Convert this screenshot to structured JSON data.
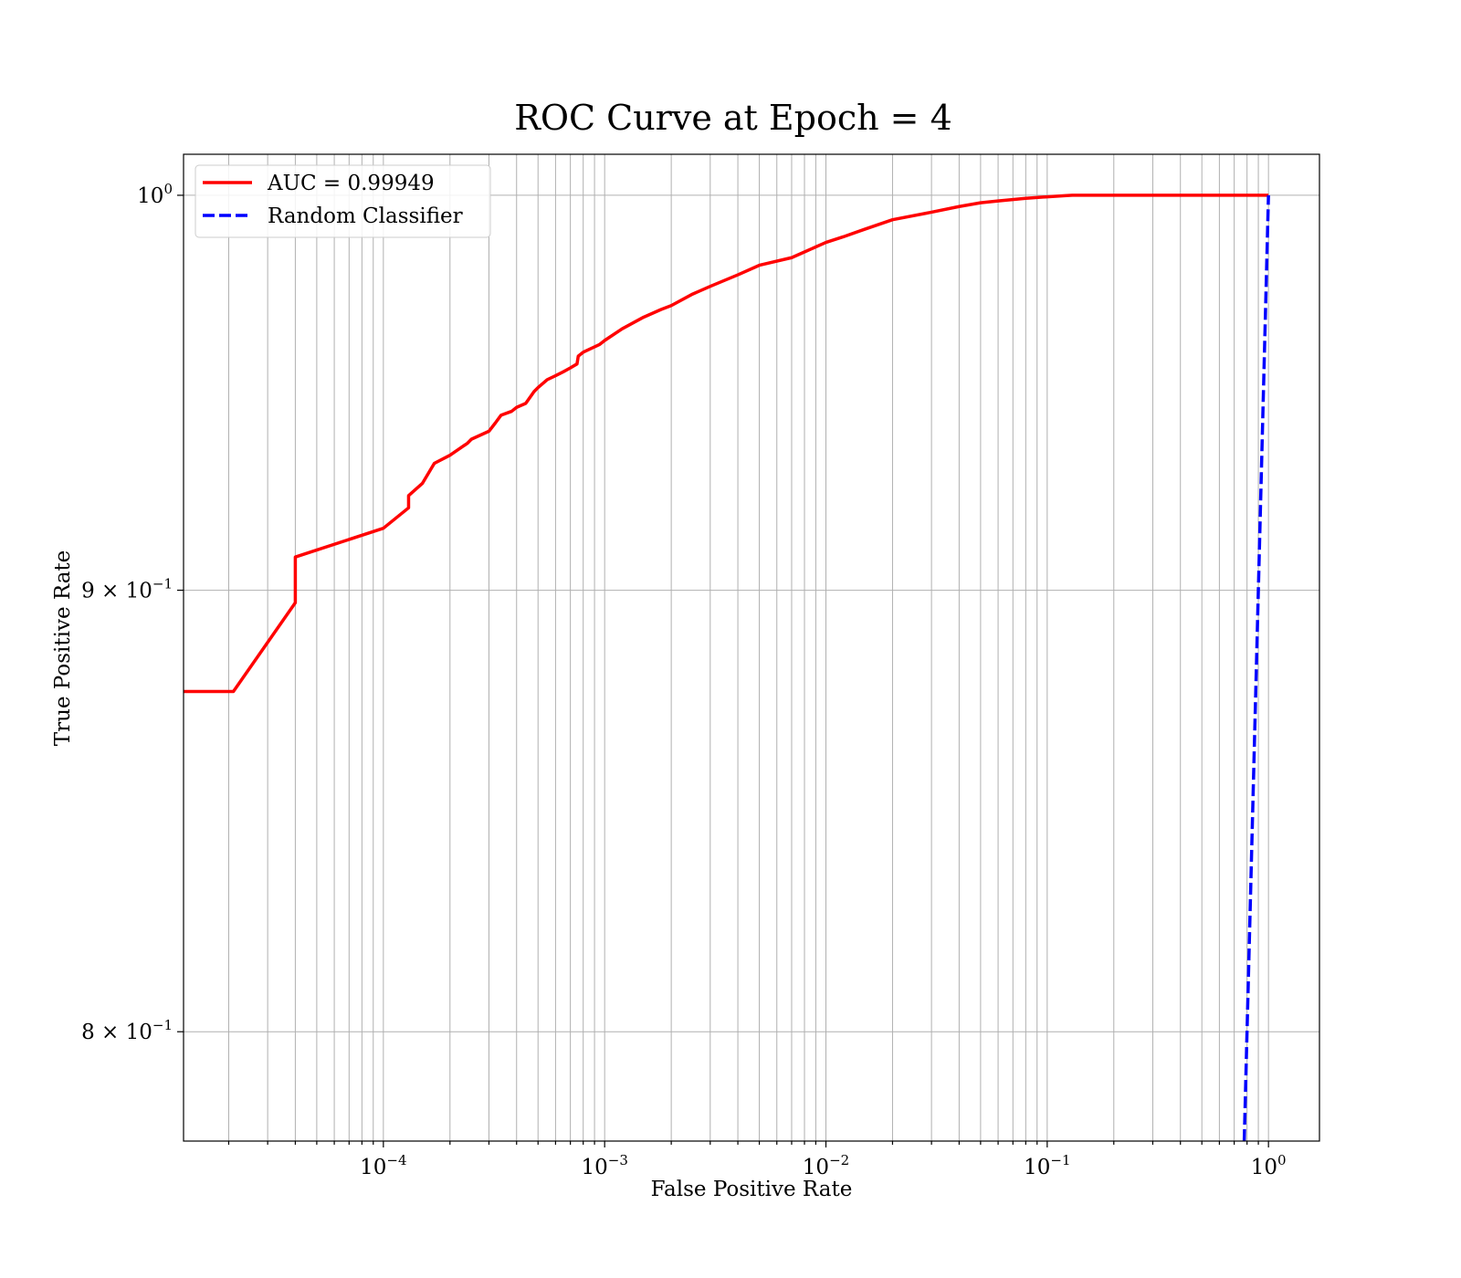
{
  "chart_data": {
    "type": "line",
    "title": "ROC Curve at Epoch = 4",
    "xlabel": "False Positive Rate",
    "ylabel": "True Positive Rate",
    "xscale": "log",
    "yscale": "log",
    "xlim": [
      1.25e-05,
      1.7
    ],
    "ylim": [
      0.777,
      1.011
    ],
    "grid": true,
    "legend_position": "top-left",
    "xticks": [
      {
        "value": 0.0001,
        "base": "10",
        "exp": "−4"
      },
      {
        "value": 0.001,
        "base": "10",
        "exp": "−3"
      },
      {
        "value": 0.01,
        "base": "10",
        "exp": "−2"
      },
      {
        "value": 0.1,
        "base": "10",
        "exp": "−1"
      },
      {
        "value": 1,
        "base": "10",
        "exp": "0"
      }
    ],
    "yticks": [
      {
        "value": 1.0,
        "base": "10",
        "exp": "0"
      },
      {
        "value": 0.9,
        "base": "9 × 10",
        "exp": "−1"
      },
      {
        "value": 0.8,
        "base": "8 × 10",
        "exp": "−1"
      }
    ],
    "series": [
      {
        "name": "AUC = 0.99949",
        "color": "#ff0000",
        "style": "solid",
        "x": [
          1.25e-05,
          2.1e-05,
          4e-05,
          4e-05,
          0.0001,
          0.00013,
          0.00013,
          0.00015,
          0.00017,
          0.0002,
          0.00024,
          0.00025,
          0.0003,
          0.00032,
          0.00034,
          0.00038,
          0.0004,
          0.00044,
          0.00048,
          0.0005,
          0.00055,
          0.0006,
          0.00065,
          0.0007,
          0.00075,
          0.00076,
          0.0008,
          0.00095,
          0.001,
          0.0012,
          0.0015,
          0.0018,
          0.002,
          0.0025,
          0.003,
          0.004,
          0.005,
          0.007,
          0.008,
          0.01,
          0.012,
          0.015,
          0.02,
          0.03,
          0.04,
          0.05,
          0.06,
          0.08,
          0.1,
          0.12,
          0.13,
          0.2,
          0.5,
          1.0
        ],
        "y": [
          0.876,
          0.876,
          0.897,
          0.908,
          0.915,
          0.92,
          0.923,
          0.926,
          0.931,
          0.933,
          0.936,
          0.937,
          0.939,
          0.941,
          0.943,
          0.944,
          0.945,
          0.946,
          0.949,
          0.95,
          0.952,
          0.953,
          0.954,
          0.955,
          0.956,
          0.958,
          0.959,
          0.961,
          0.962,
          0.965,
          0.968,
          0.97,
          0.971,
          0.974,
          0.976,
          0.979,
          0.9815,
          0.9835,
          0.985,
          0.9875,
          0.989,
          0.991,
          0.9935,
          0.9955,
          0.997,
          0.998,
          0.9985,
          0.9992,
          0.9996,
          0.9999,
          1.0,
          1.0,
          1.0,
          1.0
        ]
      },
      {
        "name": "Random Classifier",
        "color": "#0000ff",
        "style": "dashed",
        "x": [
          0.777,
          1.0
        ],
        "y": [
          0.777,
          1.0
        ]
      }
    ]
  }
}
